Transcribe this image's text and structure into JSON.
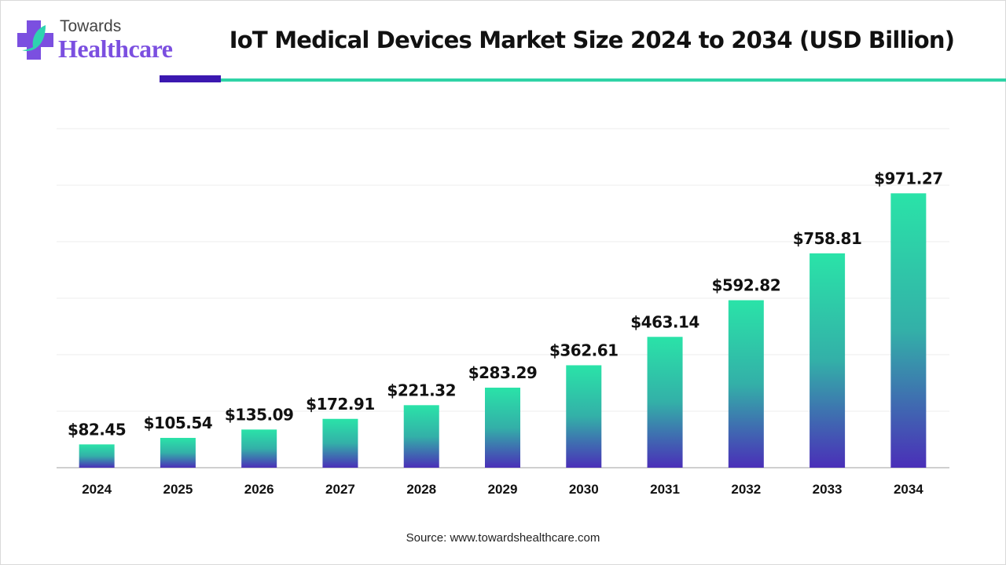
{
  "brand": {
    "line1": "Towards",
    "line2": "Healthcare"
  },
  "source": "Source: www.towardshealthcare.com",
  "colors": {
    "bar_top": "#2ae3a8",
    "bar_bottom": "#4a2fb8",
    "accent_dark": "#3b18b0",
    "accent_teal": "#2fd3a6",
    "logo_purple": "#7b4fe0"
  },
  "chart_data": {
    "type": "bar",
    "title": "IoT Medical Devices Market Size 2024 to 2034 (USD Billion)",
    "xlabel": "",
    "ylabel": "",
    "categories": [
      "2024",
      "2025",
      "2026",
      "2027",
      "2028",
      "2029",
      "2030",
      "2031",
      "2032",
      "2033",
      "2034"
    ],
    "values": [
      82.45,
      105.54,
      135.09,
      172.91,
      221.32,
      283.29,
      362.61,
      463.14,
      592.82,
      758.81,
      971.27
    ],
    "data_labels": [
      "$82.45",
      "$105.54",
      "$135.09",
      "$172.91",
      "$221.32",
      "$283.29",
      "$362.61",
      "$463.14",
      "$592.82",
      "$758.81",
      "$971.27"
    ],
    "ylim": [
      0,
      1200
    ],
    "grid": true,
    "y_tick_labels_shown": false
  }
}
